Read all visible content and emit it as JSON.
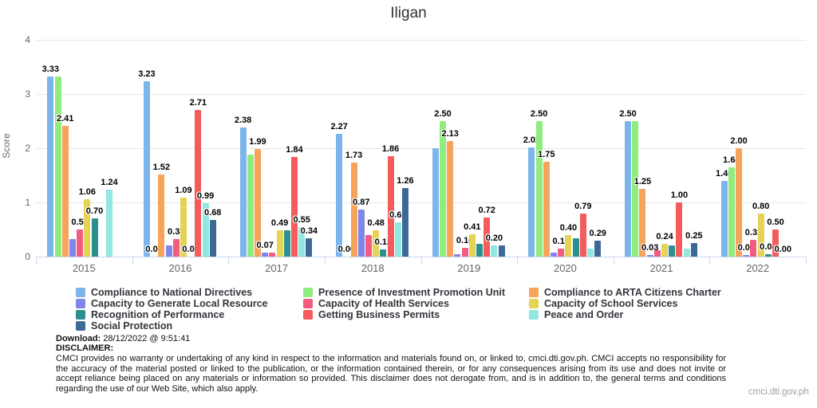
{
  "title": "Iligan",
  "y_axis": {
    "label": "Score",
    "ticks": [
      0,
      1,
      2,
      3,
      4
    ],
    "max": 4
  },
  "chart_data": {
    "type": "bar",
    "title": "Iligan",
    "xlabel": "",
    "ylabel": "Score",
    "ylim": [
      0,
      4
    ],
    "grid": true,
    "legend_position": "bottom",
    "categories": [
      "2015",
      "2016",
      "2017",
      "2018",
      "2019",
      "2020",
      "2021",
      "2022"
    ],
    "series": [
      {
        "name": "Compliance to National Directives",
        "color": "#7cb5ec",
        "values": [
          3.33,
          3.23,
          2.38,
          2.27,
          2.0,
          2.02,
          2.5,
          1.4
        ],
        "labels": [
          "3.33",
          "3.23",
          "2.38",
          "2.27",
          "",
          "2.02",
          "2.50",
          "1.40"
        ]
      },
      {
        "name": "Presence of Investment Promotion Unit",
        "color": "#90ed7d",
        "values": [
          3.33,
          0.0,
          1.88,
          0.0,
          2.5,
          2.5,
          2.5,
          1.64
        ],
        "labels": [
          "",
          "0.00",
          "",
          "0.00",
          "2.50",
          "2.50",
          "",
          "1.64"
        ]
      },
      {
        "name": "Compliance to ARTA Citizens Charter",
        "color": "#f7a35c",
        "values": [
          2.41,
          1.52,
          1.99,
          1.73,
          2.13,
          1.75,
          1.25,
          2.0
        ],
        "labels": [
          "2.41",
          "1.52",
          "1.99",
          "1.73",
          "2.13",
          "1.75",
          "1.25",
          "2.00"
        ]
      },
      {
        "name": "Capacity to Generate Local Resource",
        "color": "#8085e9",
        "values": [
          0.32,
          0.2,
          0.07,
          0.87,
          0.05,
          0.07,
          0.03,
          0.03
        ],
        "labels": [
          "",
          "",
          "0.07",
          "0.87",
          "",
          "",
          "0.03",
          "0.03"
        ]
      },
      {
        "name": "Capacity of Health Services",
        "color": "#f15c80",
        "values": [
          0.5,
          0.33,
          0.07,
          0.4,
          0.16,
          0.15,
          0.12,
          0.31
        ],
        "labels": [
          "0.50",
          "0.33",
          "",
          "",
          "0.16",
          "0.15",
          "",
          "0.31"
        ]
      },
      {
        "name": "Capacity of School Services",
        "color": "#e4d354",
        "values": [
          1.06,
          1.09,
          0.49,
          0.48,
          0.41,
          0.4,
          0.24,
          0.8
        ],
        "labels": [
          "1.06",
          "1.09",
          "0.49",
          "0.48",
          "0.41",
          "0.40",
          "0.24",
          "0.80"
        ]
      },
      {
        "name": "Recognition of Performance",
        "color": "#2b908f",
        "values": [
          0.7,
          0.0,
          0.49,
          0.13,
          0.24,
          0.34,
          0.2,
          0.04
        ],
        "labels": [
          "0.70",
          "0.00",
          "",
          "0.13",
          "",
          "",
          "",
          "0.04"
        ]
      },
      {
        "name": "Getting Business Permits",
        "color": "#f45b5b",
        "values": [
          0.0,
          2.71,
          1.84,
          1.86,
          0.72,
          0.79,
          1.0,
          0.5
        ],
        "labels": [
          "",
          "2.71",
          "1.84",
          "1.86",
          "0.72",
          "0.79",
          "1.00",
          "0.50"
        ]
      },
      {
        "name": "Peace and Order",
        "color": "#91e8e1",
        "values": [
          1.24,
          0.99,
          0.55,
          0.63,
          0.2,
          0.15,
          0.15,
          0.0
        ],
        "labels": [
          "1.24",
          "0.99",
          "0.55",
          "0.63",
          "0.20",
          "",
          "",
          "0.00"
        ]
      },
      {
        "name": "Social Protection",
        "color": "#3e6996",
        "values": [
          0.0,
          0.68,
          0.34,
          1.26,
          0.2,
          0.29,
          0.25,
          0.0
        ],
        "labels": [
          "",
          "0.68",
          "0.34",
          "1.26",
          "",
          "0.29",
          "0.25",
          ""
        ]
      }
    ]
  },
  "footer": {
    "download_label": "Download:",
    "download_value": "28/12/2022 @ 9:51:41",
    "disclaimer_label": "DISCLAIMER:",
    "disclaimer_text": "CMCI provides no warranty or undertaking of any kind in respect to the information and materials found on, or linked to, cmci.dti.gov.ph. CMCI accepts no responsibility for the accuracy of the material posted or linked to the publication, or the information contained therein, or for any consequences arising from its use and does not invite or accept reliance being placed on any materials or information so provided. This disclaimer does not derogate from, and is in addition to, the general terms and conditions regarding the use of our Web Site, which also apply.",
    "site": "cmci.dti.gov.ph"
  }
}
